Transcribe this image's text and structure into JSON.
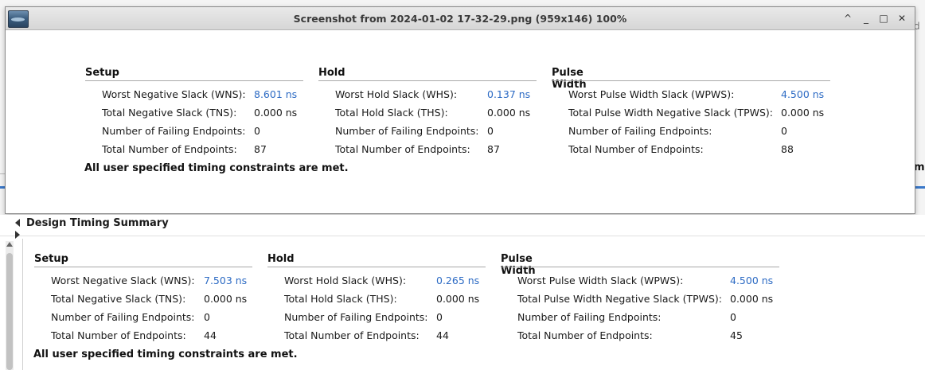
{
  "viewer": {
    "title": "Screenshot from 2024-01-02 17-32-29.png (959x146) 100%",
    "buttons": {
      "menu": "^",
      "minimize": "_",
      "maximize": "□",
      "close": "✕"
    }
  },
  "background": {
    "right_text": "d",
    "right_cut": "m"
  },
  "panel": {
    "title": "Design Timing Summary"
  },
  "top_summary": {
    "setup": {
      "heading": "Setup",
      "rows": [
        {
          "label": "Worst Negative Slack (WNS):",
          "value": "8.601 ns"
        },
        {
          "label": "Total Negative Slack (TNS):",
          "value": "0.000 ns"
        },
        {
          "label": "Number of Failing Endpoints:",
          "value": "0"
        },
        {
          "label": "Total Number of Endpoints:",
          "value": "87"
        }
      ]
    },
    "hold": {
      "heading": "Hold",
      "rows": [
        {
          "label": "Worst Hold Slack (WHS):",
          "value": "0.137 ns"
        },
        {
          "label": "Total Hold Slack (THS):",
          "value": "0.000 ns"
        },
        {
          "label": "Number of Failing Endpoints:",
          "value": "0"
        },
        {
          "label": "Total Number of Endpoints:",
          "value": "87"
        }
      ]
    },
    "pulse": {
      "heading": "Pulse Width",
      "rows": [
        {
          "label": "Worst Pulse Width Slack (WPWS):",
          "value": "4.500 ns"
        },
        {
          "label": "Total Pulse Width Negative Slack (TPWS):",
          "value": "0.000 ns"
        },
        {
          "label": "Number of Failing Endpoints:",
          "value": "0"
        },
        {
          "label": "Total Number of Endpoints:",
          "value": "88"
        }
      ]
    },
    "met_message": "All user specified timing constraints are met."
  },
  "bottom_summary": {
    "setup": {
      "heading": "Setup",
      "rows": [
        {
          "label": "Worst Negative Slack (WNS):",
          "value": "7.503 ns"
        },
        {
          "label": "Total Negative Slack (TNS):",
          "value": "0.000 ns"
        },
        {
          "label": "Number of Failing Endpoints:",
          "value": "0"
        },
        {
          "label": "Total Number of Endpoints:",
          "value": "44"
        }
      ]
    },
    "hold": {
      "heading": "Hold",
      "rows": [
        {
          "label": "Worst Hold Slack (WHS):",
          "value": "0.265 ns"
        },
        {
          "label": "Total Hold Slack (THS):",
          "value": "0.000 ns"
        },
        {
          "label": "Number of Failing Endpoints:",
          "value": "0"
        },
        {
          "label": "Total Number of Endpoints:",
          "value": "44"
        }
      ]
    },
    "pulse": {
      "heading": "Pulse Width",
      "rows": [
        {
          "label": "Worst Pulse Width Slack (WPWS):",
          "value": "4.500 ns"
        },
        {
          "label": "Total Pulse Width Negative Slack (TPWS):",
          "value": "0.000 ns"
        },
        {
          "label": "Number of Failing Endpoints:",
          "value": "0"
        },
        {
          "label": "Total Number of Endpoints:",
          "value": "45"
        }
      ]
    },
    "met_message": "All user specified timing constraints are met."
  },
  "colors": {
    "link": "#2d6bc4",
    "accent_line": "#3a78c9"
  },
  "icons": {
    "viewer_app": "image-viewer-icon",
    "collapse": "collapse-arrow-icon",
    "expand": "expand-arrow-icon"
  }
}
